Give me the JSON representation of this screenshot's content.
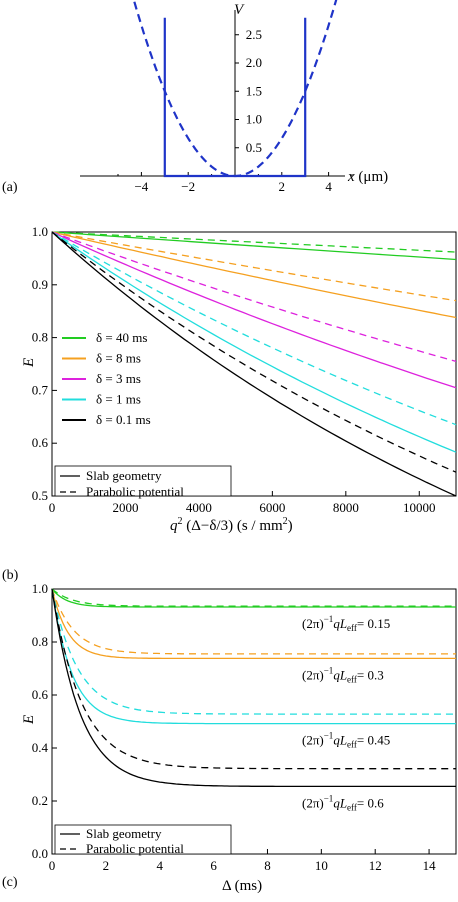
{
  "chart_data": [
    {
      "panel": "(a)",
      "type": "line",
      "xlabel": "x (μm)",
      "ylabel": "V",
      "xlim": [
        -5.5,
        5.5
      ],
      "ylim": [
        0,
        2.8
      ],
      "xticks": [
        "−4",
        "−2",
        "2",
        "4"
      ],
      "yticks": [
        "0.5",
        "1.0",
        "1.5",
        "2.0",
        "2.5"
      ],
      "series": [
        {
          "style": "solid",
          "color": "#1f34c8",
          "x": [
            -3,
            -3,
            3,
            3
          ],
          "y": [
            2.8,
            0,
            0,
            2.8
          ]
        },
        {
          "style": "dashed",
          "color": "#1f34c8",
          "x": [
            -4.6,
            -4,
            -3,
            -2,
            -1,
            0,
            1,
            2,
            3,
            4,
            4.6
          ],
          "y": [
            3.53,
            2.67,
            1.5,
            0.67,
            0.17,
            0,
            0.17,
            0.67,
            1.5,
            2.67,
            3.53
          ]
        }
      ]
    },
    {
      "panel": "(b)",
      "type": "line",
      "xlabel_parts": [
        "q",
        "2",
        " (Δ−δ/3)   (s / mm",
        "2",
        ")"
      ],
      "ylabel": "E",
      "xlim": [
        0,
        11000
      ],
      "ylim": [
        0.5,
        1.0
      ],
      "xticks": [
        "0",
        "2000",
        "4000",
        "6000",
        "8000",
        "10000"
      ],
      "yticks": [
        "0.5",
        "0.6",
        "0.7",
        "0.8",
        "0.9",
        "1.0"
      ],
      "legend_colors": [
        "δ = 40 ms",
        "δ = 8 ms",
        "δ = 3 ms",
        "δ = 1 ms",
        "δ = 0.1 ms"
      ],
      "legend_styles": [
        "Slab geometry",
        "Parabolic potential"
      ],
      "series": [
        {
          "name": "δ = 40 ms",
          "color": "#22cc22",
          "slab": [
            [
              0,
              1.0
            ],
            [
              11000,
              0.948
            ]
          ],
          "parabolic": [
            [
              0,
              1.0
            ],
            [
              11000,
              0.962
            ]
          ]
        },
        {
          "name": "δ = 8 ms",
          "color": "#f5a020",
          "slab": [
            [
              0,
              1.0
            ],
            [
              11000,
              0.838
            ]
          ],
          "parabolic": [
            [
              0,
              1.0
            ],
            [
              11000,
              0.87
            ]
          ]
        },
        {
          "name": "δ = 3 ms",
          "color": "#dd22dd",
          "slab": [
            [
              0,
              1.0
            ],
            [
              11000,
              0.705
            ]
          ],
          "parabolic": [
            [
              0,
              1.0
            ],
            [
              11000,
              0.755
            ]
          ]
        },
        {
          "name": "δ = 1 ms",
          "color": "#22dddd",
          "slab": [
            [
              0,
              1.0
            ],
            [
              11000,
              0.583
            ]
          ],
          "parabolic": [
            [
              0,
              1.0
            ],
            [
              11000,
              0.635
            ]
          ]
        },
        {
          "name": "δ = 0.1 ms",
          "color": "#000000",
          "slab": [
            [
              0,
              1.0
            ],
            [
              11000,
              0.5
            ]
          ],
          "parabolic": [
            [
              0,
              1.0
            ],
            [
              11000,
              0.545
            ]
          ]
        }
      ]
    },
    {
      "panel": "(c)",
      "type": "line",
      "xlabel": "Δ   (ms)",
      "ylabel": "E",
      "xlim": [
        0,
        15
      ],
      "ylim": [
        0.0,
        1.0
      ],
      "xticks": [
        "0",
        "2",
        "4",
        "6",
        "8",
        "10",
        "12",
        "14"
      ],
      "yticks": [
        "0.0",
        "0.2",
        "0.4",
        "0.6",
        "0.8",
        "1.0"
      ],
      "legend_styles": [
        "Slab geometry",
        "Parabolic potential"
      ],
      "annotation_prefix": "(2π)",
      "annotation_exp": "−1",
      "annotation_q": "q",
      "annotation_L": "L",
      "annotation_sub": "eff",
      "series": [
        {
          "color": "#22cc22",
          "annotation": "= 0.15",
          "slab_plateau": 0.932,
          "slab_tau": 0.55,
          "parabolic_plateau": 0.935,
          "parabolic_tau": 0.75
        },
        {
          "color": "#f5a020",
          "annotation": "= 0.3",
          "slab_plateau": 0.738,
          "slab_tau": 0.6,
          "parabolic_plateau": 0.755,
          "parabolic_tau": 0.8
        },
        {
          "color": "#22dddd",
          "annotation": "= 0.45",
          "slab_plateau": 0.492,
          "slab_tau": 0.75,
          "parabolic_plateau": 0.528,
          "parabolic_tau": 0.95
        },
        {
          "color": "#000000",
          "annotation": "= 0.6",
          "slab_plateau": 0.255,
          "slab_tau": 1.05,
          "parabolic_plateau": 0.322,
          "parabolic_tau": 1.1
        }
      ]
    }
  ]
}
